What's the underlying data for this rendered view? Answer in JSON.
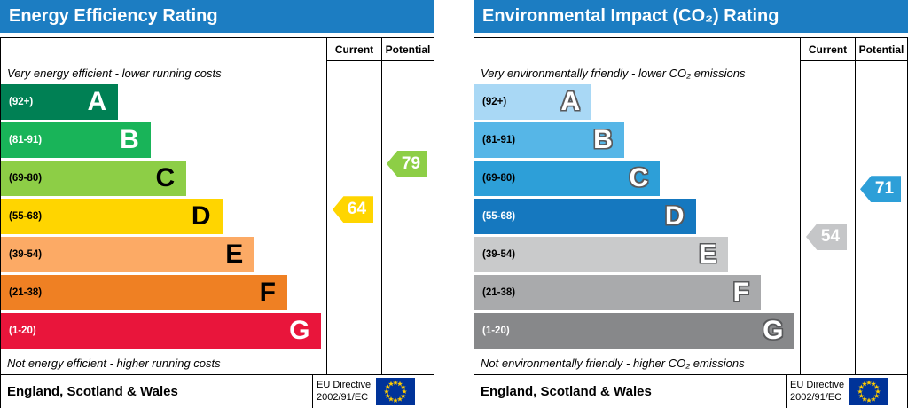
{
  "charts": [
    {
      "title": "Energy Efficiency Rating",
      "columns": [
        "Current",
        "Potential"
      ],
      "top_caption": "Very energy efficient - lower running costs",
      "bottom_caption": "Not energy efficient - higher running costs",
      "footer_region": "England, Scotland & Wales",
      "directive_lines": [
        "EU Directive",
        "2002/91/EC"
      ],
      "header_color": "#1c7dc2",
      "outlined_letters": false,
      "bands": [
        {
          "letter": "A",
          "range": "(92+)",
          "min": 92,
          "max": 100,
          "width_pct": 36,
          "color": "#008054",
          "range_color": "#ffffff",
          "letter_color": "#ffffff"
        },
        {
          "letter": "B",
          "range": "(81-91)",
          "min": 81,
          "max": 91,
          "width_pct": 46,
          "color": "#19b459",
          "range_color": "#ffffff",
          "letter_color": "#ffffff"
        },
        {
          "letter": "C",
          "range": "(69-80)",
          "min": 69,
          "max": 80,
          "width_pct": 57,
          "color": "#8dce46",
          "range_color": "#000000",
          "letter_color": "#000000"
        },
        {
          "letter": "D",
          "range": "(55-68)",
          "min": 55,
          "max": 68,
          "width_pct": 68,
          "color": "#ffd500",
          "range_color": "#000000",
          "letter_color": "#000000"
        },
        {
          "letter": "E",
          "range": "(39-54)",
          "min": 39,
          "max": 54,
          "width_pct": 78,
          "color": "#fcaa65",
          "range_color": "#000000",
          "letter_color": "#000000"
        },
        {
          "letter": "F",
          "range": "(21-38)",
          "min": 21,
          "max": 38,
          "width_pct": 88,
          "color": "#ef8023",
          "range_color": "#000000",
          "letter_color": "#000000"
        },
        {
          "letter": "G",
          "range": "(1-20)",
          "min": 1,
          "max": 20,
          "width_pct": 98.5,
          "color": "#e9153b",
          "range_color": "#ffffff",
          "letter_color": "#ffffff"
        }
      ],
      "current": {
        "value": 64,
        "color": "#ffd500"
      },
      "potential": {
        "value": 79,
        "color": "#8dce46"
      }
    },
    {
      "title": "Environmental Impact (CO₂) Rating",
      "columns": [
        "Current",
        "Potential"
      ],
      "top_caption": "Very environmentally friendly - lower CO₂ emissions",
      "bottom_caption": "Not environmentally friendly - higher CO₂ emissions",
      "footer_region": "England, Scotland & Wales",
      "directive_lines": [
        "EU Directive",
        "2002/91/EC"
      ],
      "header_color": "#1c7dc2",
      "outlined_letters": true,
      "bands": [
        {
          "letter": "A",
          "range": "(92+)",
          "min": 92,
          "max": 100,
          "width_pct": 36,
          "color": "#a9d8f5",
          "range_color": "#000000",
          "letter_color": "#ffffff"
        },
        {
          "letter": "B",
          "range": "(81-91)",
          "min": 81,
          "max": 91,
          "width_pct": 46,
          "color": "#56b6e7",
          "range_color": "#000000",
          "letter_color": "#ffffff"
        },
        {
          "letter": "C",
          "range": "(69-80)",
          "min": 69,
          "max": 80,
          "width_pct": 57,
          "color": "#2d9fd8",
          "range_color": "#000000",
          "letter_color": "#ffffff"
        },
        {
          "letter": "D",
          "range": "(55-68)",
          "min": 55,
          "max": 68,
          "width_pct": 68,
          "color": "#1578bf",
          "range_color": "#ffffff",
          "letter_color": "#ffffff"
        },
        {
          "letter": "E",
          "range": "(39-54)",
          "min": 39,
          "max": 54,
          "width_pct": 78,
          "color": "#c9cacb",
          "range_color": "#000000",
          "letter_color": "#ffffff"
        },
        {
          "letter": "F",
          "range": "(21-38)",
          "min": 21,
          "max": 38,
          "width_pct": 88,
          "color": "#a9aaac",
          "range_color": "#000000",
          "letter_color": "#ffffff"
        },
        {
          "letter": "G",
          "range": "(1-20)",
          "min": 1,
          "max": 20,
          "width_pct": 98.5,
          "color": "#87888a",
          "range_color": "#ffffff",
          "letter_color": "#ffffff"
        }
      ],
      "current": {
        "value": 54,
        "color": "#c5c6c8"
      },
      "potential": {
        "value": 71,
        "color": "#2d9fd8"
      }
    }
  ],
  "chart_data": [
    {
      "type": "bar",
      "title": "Energy Efficiency Rating",
      "categories": [
        "A (92+)",
        "B (81-91)",
        "C (69-80)",
        "D (55-68)",
        "E (39-54)",
        "F (21-38)",
        "G (1-20)"
      ],
      "values": [
        36,
        46,
        57,
        68,
        78,
        88,
        98.5
      ],
      "annotations": {
        "current_rating": 64,
        "current_band": "D",
        "potential_rating": 79,
        "potential_band": "C"
      },
      "xlabel": "",
      "ylabel": "",
      "legend_position": "none",
      "notes": [
        "Very energy efficient - lower running costs",
        "Not energy efficient - higher running costs",
        "England, Scotland & Wales",
        "EU Directive 2002/91/EC"
      ]
    },
    {
      "type": "bar",
      "title": "Environmental Impact (CO₂) Rating",
      "categories": [
        "A (92+)",
        "B (81-91)",
        "C (69-80)",
        "D (55-68)",
        "E (39-54)",
        "F (21-38)",
        "G (1-20)"
      ],
      "values": [
        36,
        46,
        57,
        68,
        78,
        88,
        98.5
      ],
      "annotations": {
        "current_rating": 54,
        "current_band": "E",
        "potential_rating": 71,
        "potential_band": "C"
      },
      "xlabel": "",
      "ylabel": "",
      "legend_position": "none",
      "notes": [
        "Very environmentally friendly - lower CO₂ emissions",
        "Not environmentally friendly - higher CO₂ emissions",
        "England, Scotland & Wales",
        "EU Directive 2002/91/EC"
      ]
    }
  ]
}
